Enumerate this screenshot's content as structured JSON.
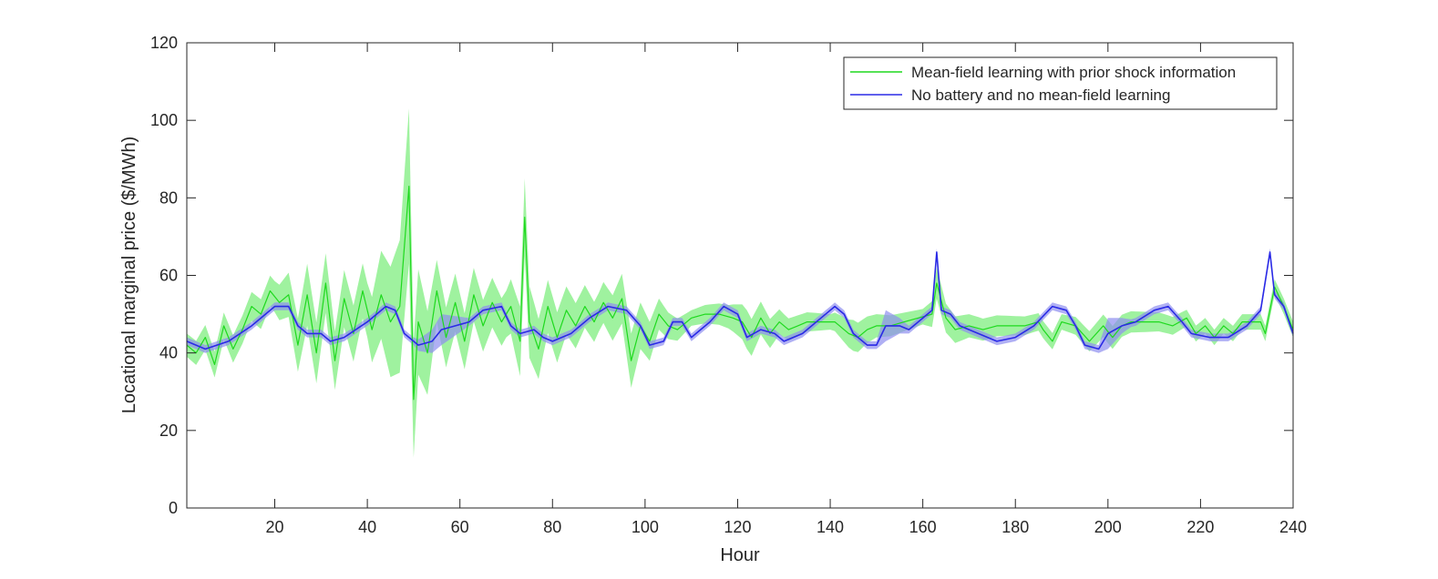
{
  "chart_data": {
    "type": "line",
    "title": "",
    "xlabel": "Hour",
    "ylabel": "Locational marginal price ($/MWh)",
    "xlim": [
      1,
      240
    ],
    "ylim": [
      0,
      120
    ],
    "xticks": [
      20,
      40,
      60,
      80,
      100,
      120,
      140,
      160,
      180,
      200,
      220,
      240
    ],
    "yticks": [
      0,
      20,
      40,
      60,
      80,
      100,
      120
    ],
    "grid": false,
    "legend_position": "top-right",
    "colors": {
      "green": "#1ed91e",
      "green_band": "#8ef08e",
      "blue": "#2a2ae6",
      "blue_band": "#8f8ff0"
    },
    "series": [
      {
        "name": "Mean-field learning with prior shock information",
        "color": "#1ed91e",
        "knots": [
          [
            1,
            42
          ],
          [
            3,
            40
          ],
          [
            5,
            44
          ],
          [
            7,
            37
          ],
          [
            9,
            47
          ],
          [
            11,
            41
          ],
          [
            13,
            46
          ],
          [
            15,
            52
          ],
          [
            17,
            50
          ],
          [
            19,
            56
          ],
          [
            21,
            53
          ],
          [
            23,
            55
          ],
          [
            25,
            42
          ],
          [
            27,
            55
          ],
          [
            29,
            40
          ],
          [
            31,
            58
          ],
          [
            33,
            38
          ],
          [
            35,
            54
          ],
          [
            37,
            45
          ],
          [
            39,
            56
          ],
          [
            41,
            46
          ],
          [
            43,
            55
          ],
          [
            45,
            48
          ],
          [
            47,
            52
          ],
          [
            49,
            83
          ],
          [
            50,
            28
          ],
          [
            51,
            48
          ],
          [
            53,
            40
          ],
          [
            55,
            56
          ],
          [
            57,
            44
          ],
          [
            59,
            53
          ],
          [
            61,
            43
          ],
          [
            63,
            55
          ],
          [
            65,
            47
          ],
          [
            67,
            53
          ],
          [
            69,
            48
          ],
          [
            71,
            52
          ],
          [
            73,
            43
          ],
          [
            74,
            75
          ],
          [
            75,
            48
          ],
          [
            77,
            41
          ],
          [
            79,
            52
          ],
          [
            81,
            44
          ],
          [
            83,
            51
          ],
          [
            85,
            47
          ],
          [
            87,
            52
          ],
          [
            89,
            48
          ],
          [
            91,
            53
          ],
          [
            93,
            49
          ],
          [
            95,
            54
          ],
          [
            97,
            38
          ],
          [
            99,
            47
          ],
          [
            101,
            43
          ],
          [
            103,
            50
          ],
          [
            105,
            47
          ],
          [
            107,
            46
          ],
          [
            110,
            49
          ],
          [
            113,
            50
          ],
          [
            116,
            50
          ],
          [
            119,
            49
          ],
          [
            121,
            48
          ],
          [
            123,
            44
          ],
          [
            125,
            49
          ],
          [
            127,
            45
          ],
          [
            129,
            48
          ],
          [
            131,
            46
          ],
          [
            133,
            47
          ],
          [
            135,
            48
          ],
          [
            138,
            48
          ],
          [
            141,
            48
          ],
          [
            144,
            45
          ],
          [
            146,
            44
          ],
          [
            148,
            46
          ],
          [
            150,
            47
          ],
          [
            153,
            47
          ],
          [
            156,
            48
          ],
          [
            159,
            49
          ],
          [
            162,
            50
          ],
          [
            163,
            58
          ],
          [
            165,
            49
          ],
          [
            167,
            46
          ],
          [
            170,
            47
          ],
          [
            173,
            46
          ],
          [
            176,
            47
          ],
          [
            179,
            47
          ],
          [
            182,
            47
          ],
          [
            185,
            48
          ],
          [
            186,
            46
          ],
          [
            188,
            43
          ],
          [
            190,
            48
          ],
          [
            193,
            47
          ],
          [
            196,
            43
          ],
          [
            199,
            47
          ],
          [
            201,
            44
          ],
          [
            203,
            47
          ],
          [
            205,
            48
          ],
          [
            208,
            48
          ],
          [
            211,
            48
          ],
          [
            214,
            47
          ],
          [
            217,
            49
          ],
          [
            219,
            45
          ],
          [
            221,
            47
          ],
          [
            223,
            44
          ],
          [
            225,
            47
          ],
          [
            227,
            45
          ],
          [
            229,
            48
          ],
          [
            231,
            48
          ],
          [
            233,
            48
          ],
          [
            234,
            45
          ],
          [
            235,
            51
          ],
          [
            236,
            57
          ],
          [
            238,
            52
          ],
          [
            240,
            46
          ]
        ],
        "band_width": [
          [
            1,
            3
          ],
          [
            20,
            4
          ],
          [
            27,
            8
          ],
          [
            40,
            7
          ],
          [
            49,
            20
          ],
          [
            50,
            15
          ],
          [
            55,
            8
          ],
          [
            70,
            6
          ],
          [
            74,
            10
          ],
          [
            78,
            7
          ],
          [
            90,
            5
          ],
          [
            97,
            7
          ],
          [
            103,
            4
          ],
          [
            110,
            2
          ],
          [
            118,
            3
          ],
          [
            122,
            5
          ],
          [
            130,
            3
          ],
          [
            140,
            2
          ],
          [
            145,
            4
          ],
          [
            150,
            3
          ],
          [
            160,
            2
          ],
          [
            163,
            4
          ],
          [
            170,
            3
          ],
          [
            190,
            2
          ],
          [
            200,
            3
          ],
          [
            220,
            2
          ],
          [
            240,
            2
          ]
        ]
      },
      {
        "name": "No battery and no mean-field learning",
        "color": "#2a2ae6",
        "knots": [
          [
            1,
            43
          ],
          [
            5,
            41
          ],
          [
            10,
            43
          ],
          [
            15,
            47
          ],
          [
            20,
            52
          ],
          [
            23,
            52
          ],
          [
            25,
            47
          ],
          [
            27,
            45
          ],
          [
            30,
            45
          ],
          [
            32,
            43
          ],
          [
            35,
            44
          ],
          [
            40,
            48
          ],
          [
            44,
            52
          ],
          [
            46,
            51
          ],
          [
            48,
            45
          ],
          [
            51,
            42
          ],
          [
            54,
            43
          ],
          [
            56,
            46
          ],
          [
            59,
            47
          ],
          [
            62,
            48
          ],
          [
            65,
            51
          ],
          [
            69,
            52
          ],
          [
            71,
            47
          ],
          [
            73,
            45
          ],
          [
            76,
            46
          ],
          [
            78,
            44
          ],
          [
            80,
            43
          ],
          [
            84,
            45
          ],
          [
            88,
            49
          ],
          [
            92,
            52
          ],
          [
            96,
            51
          ],
          [
            99,
            47
          ],
          [
            101,
            42
          ],
          [
            104,
            43
          ],
          [
            106,
            48
          ],
          [
            108,
            48
          ],
          [
            110,
            44
          ],
          [
            114,
            48
          ],
          [
            117,
            52
          ],
          [
            120,
            50
          ],
          [
            122,
            44
          ],
          [
            125,
            46
          ],
          [
            128,
            45
          ],
          [
            130,
            43
          ],
          [
            134,
            45
          ],
          [
            138,
            49
          ],
          [
            141,
            52
          ],
          [
            143,
            50
          ],
          [
            145,
            45
          ],
          [
            148,
            42
          ],
          [
            150,
            42
          ],
          [
            152,
            47
          ],
          [
            155,
            47
          ],
          [
            157,
            46
          ],
          [
            159,
            48
          ],
          [
            162,
            51
          ],
          [
            163,
            66
          ],
          [
            164,
            51
          ],
          [
            166,
            50
          ],
          [
            168,
            47
          ],
          [
            172,
            45
          ],
          [
            176,
            43
          ],
          [
            180,
            44
          ],
          [
            184,
            47
          ],
          [
            188,
            52
          ],
          [
            191,
            51
          ],
          [
            193,
            47
          ],
          [
            195,
            42
          ],
          [
            198,
            41
          ],
          [
            200,
            45
          ],
          [
            203,
            47
          ],
          [
            206,
            48
          ],
          [
            210,
            51
          ],
          [
            213,
            52
          ],
          [
            216,
            48
          ],
          [
            218,
            45
          ],
          [
            222,
            44
          ],
          [
            226,
            44
          ],
          [
            230,
            47
          ],
          [
            233,
            51
          ],
          [
            235,
            66
          ],
          [
            236,
            55
          ],
          [
            238,
            52
          ],
          [
            240,
            45
          ]
        ],
        "band_width": [
          [
            1,
            1
          ],
          [
            50,
            1
          ],
          [
            56,
            4
          ],
          [
            60,
            2
          ],
          [
            62,
            1
          ],
          [
            150,
            1
          ],
          [
            152,
            4
          ],
          [
            155,
            2
          ],
          [
            157,
            1
          ],
          [
            198,
            1
          ],
          [
            200,
            4
          ],
          [
            203,
            2
          ],
          [
            205,
            1
          ],
          [
            240,
            1
          ]
        ]
      }
    ]
  }
}
